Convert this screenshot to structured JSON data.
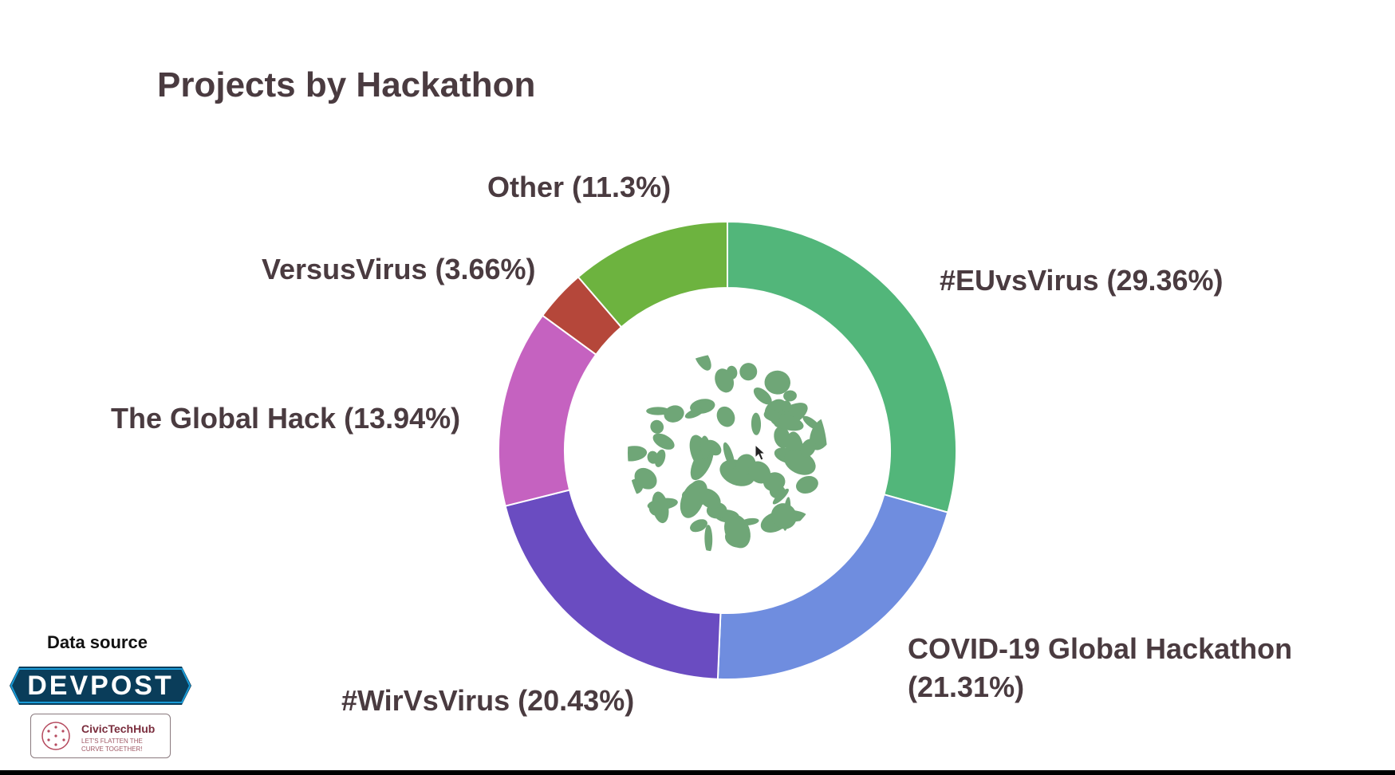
{
  "title": "Projects by Hackathon",
  "chart_data": {
    "type": "pie",
    "variant": "donut",
    "title": "Projects by Hackathon",
    "slices": [
      {
        "label": "#EUvsVirus (29.36%)",
        "name": "#EUvsVirus",
        "value": 29.36,
        "color": "#52b67a"
      },
      {
        "label": "COVID-19 Global Hackathon",
        "label_line2": "(21.31%)",
        "name": "COVID-19 Global Hackathon",
        "value": 21.31,
        "color": "#6f8ddf"
      },
      {
        "label": "#WirVsVirus  (20.43%)",
        "name": "#WirVsVirus",
        "value": 20.43,
        "color": "#6a4cc1"
      },
      {
        "label": "The Global Hack  (13.94%)",
        "name": "The Global Hack",
        "value": 13.94,
        "color": "#c562c0"
      },
      {
        "label": "VersusVirus (3.66%)",
        "name": "VersusVirus",
        "value": 3.66,
        "color": "#b5473a"
      },
      {
        "label": "Other (11.3%)",
        "name": "Other",
        "value": 11.3,
        "color": "#6db33f"
      }
    ],
    "center_image": "globe-icon",
    "center_color": "#6fa677"
  },
  "source": {
    "label": "Data source",
    "devpost": "DEVPOST",
    "devpost_color": "#0a3d5a",
    "civictech_name": "CivicTechHub",
    "civictech_tagline": "LET'S FLATTEN THE CURVE TOGETHER!"
  }
}
